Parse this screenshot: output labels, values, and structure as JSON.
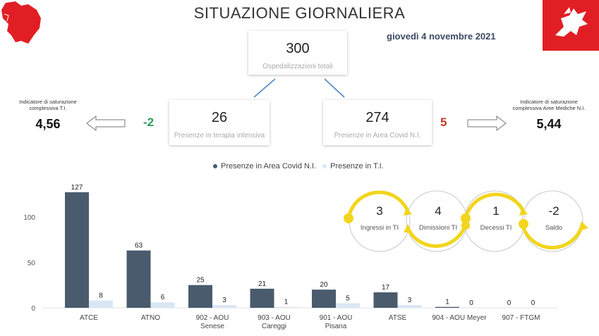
{
  "header": {
    "title": "SITUAZIONE GIORNALIERA",
    "date": "giovedì 4 novembre 2021"
  },
  "colors": {
    "area_covid": "#4a5b6e",
    "ti": "#d9e7f4",
    "positive_delta": "#2e9a5b",
    "negative_delta": "#c0392b",
    "cycle_accent": "#f2d51c",
    "logo_red": "#e21e25"
  },
  "total": {
    "value": "300",
    "label": "Ospedalizzazioni totali"
  },
  "ti_card": {
    "value": "26",
    "label": "Presenze in terapia intensiva",
    "delta": "-2"
  },
  "area_card": {
    "value": "274",
    "label": "Presenze in Area Covid N.I.",
    "delta": "5"
  },
  "saturation_ti": {
    "label_line1": "Indicatore di saturazione",
    "label_line2": "complessiva T.I.",
    "value": "4,56"
  },
  "saturation_area": {
    "label_line1": "Indicatore di saturazione",
    "label_line2": "complessiva Aree Mediche N.I.",
    "value": "5,44"
  },
  "legend": {
    "area": "Presenze in Area Covid N.I.",
    "ti": "Presenze in T.I."
  },
  "cycle": [
    {
      "value": "3",
      "label": "Ingressi in TI"
    },
    {
      "value": "4",
      "label": "Dimissioni TI"
    },
    {
      "value": "1",
      "label": "Decessi TI"
    },
    {
      "value": "-2",
      "label": "Saldo"
    }
  ],
  "icons": {
    "left_arrow": "arrow-left-outline-icon",
    "right_arrow": "arrow-right-outline-icon",
    "tuscany_map": "tuscany-map-icon",
    "pegasus_logo": "pegasus-flag-icon"
  },
  "chart_data": {
    "type": "bar",
    "categories": [
      [
        "ATCE"
      ],
      [
        "ATNO"
      ],
      [
        "902 - AOU",
        "Senese"
      ],
      [
        "903 - AOU",
        "Careggi"
      ],
      [
        "901 - AOU",
        "Pisana"
      ],
      [
        "ATSE"
      ],
      [
        "904 - AOU Meyer"
      ],
      [
        "907 - FTGM"
      ]
    ],
    "series": [
      {
        "name": "Presenze in Area Covid N.I.",
        "values": [
          127,
          63,
          25,
          21,
          20,
          17,
          1,
          0
        ]
      },
      {
        "name": "Presenze in T.I.",
        "values": [
          8,
          6,
          3,
          1,
          5,
          3,
          0,
          0
        ]
      }
    ],
    "yticks": [
      "0",
      "50",
      "100"
    ],
    "ylim": [
      0,
      130
    ],
    "grid": false,
    "legend_position": "top-center"
  }
}
